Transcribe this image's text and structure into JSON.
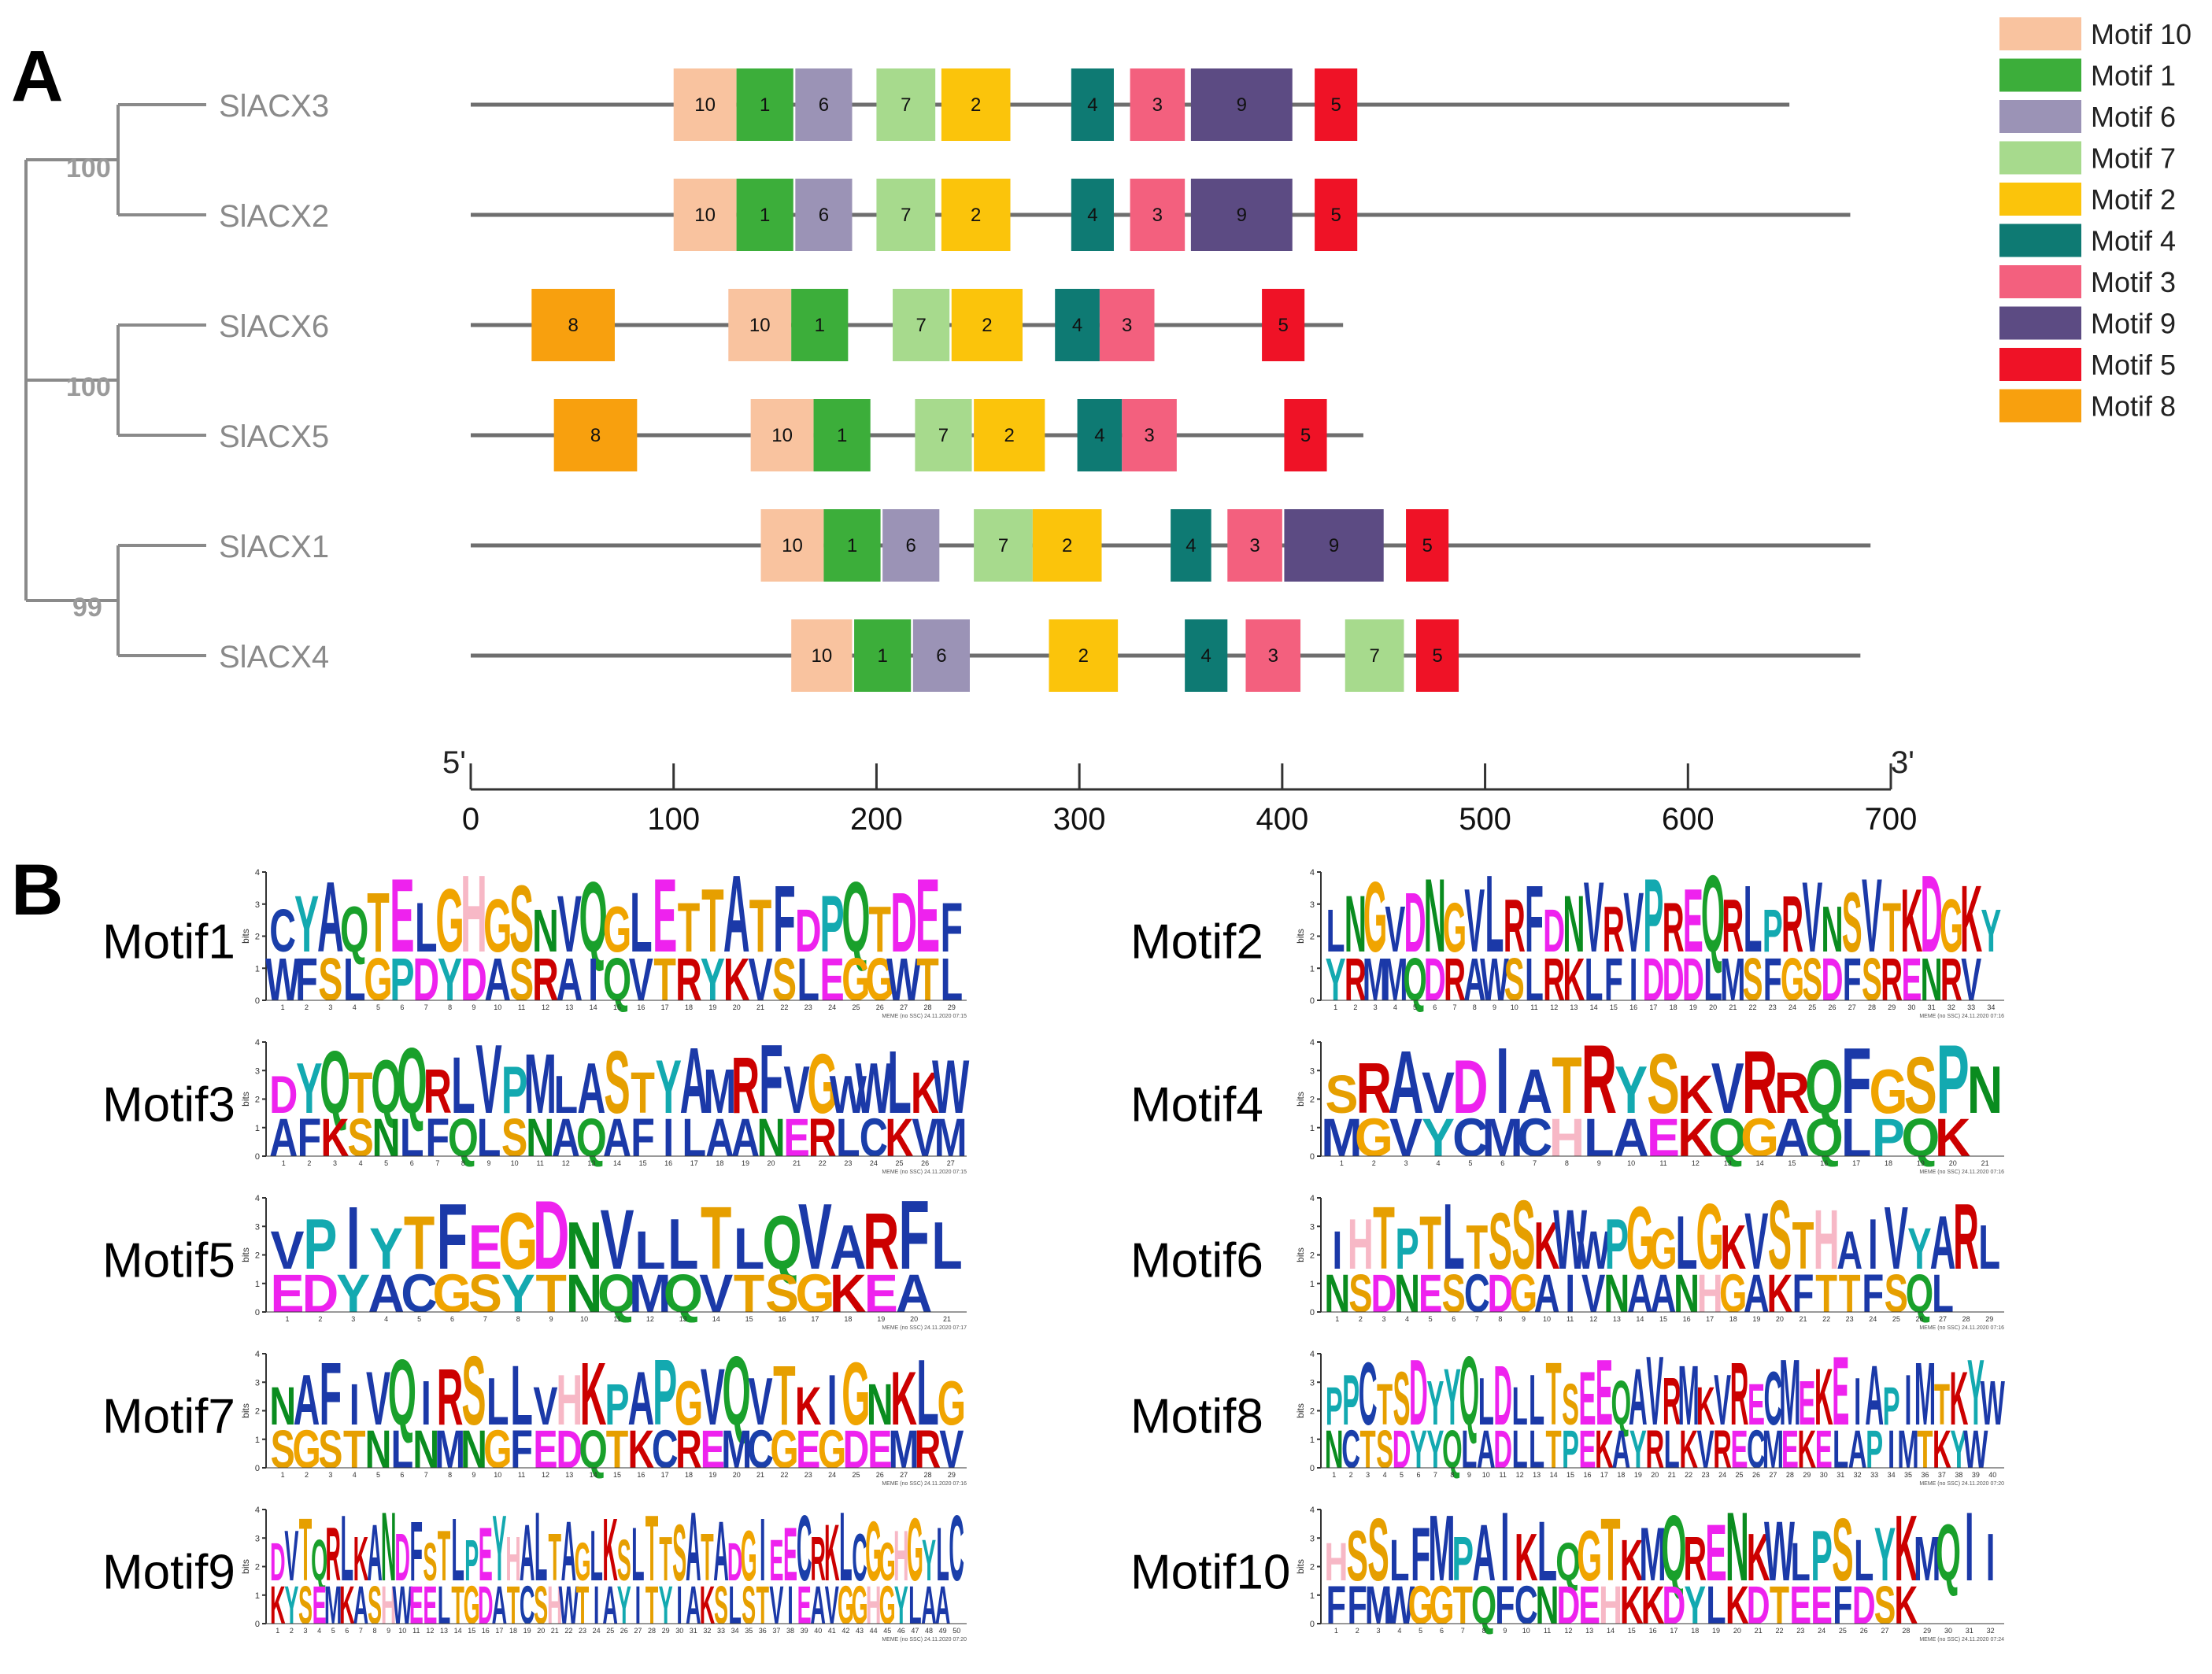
{
  "panel_a": {
    "label": "A",
    "scale_start": 0,
    "scale_end": 700,
    "scale_end_5": "5'",
    "scale_end_3": "3'",
    "ticks": [
      "0",
      "100",
      "200",
      "300",
      "400",
      "500",
      "600",
      "700"
    ],
    "tree": {
      "bootstraps": [
        "100",
        "100",
        "99"
      ]
    },
    "genes": [
      {
        "name": "SlACX3",
        "length": 650,
        "motifs": [
          {
            "id": "10",
            "start": 100,
            "end": 131
          },
          {
            "id": "1",
            "start": 131,
            "end": 159
          },
          {
            "id": "6",
            "start": 160,
            "end": 188
          },
          {
            "id": "7",
            "start": 200,
            "end": 229
          },
          {
            "id": "2",
            "start": 232,
            "end": 266
          },
          {
            "id": "4",
            "start": 296,
            "end": 317
          },
          {
            "id": "3",
            "start": 325,
            "end": 352
          },
          {
            "id": "9",
            "start": 355,
            "end": 405
          },
          {
            "id": "5",
            "start": 416,
            "end": 437
          }
        ]
      },
      {
        "name": "SlACX2",
        "length": 680,
        "motifs": [
          {
            "id": "10",
            "start": 100,
            "end": 131
          },
          {
            "id": "1",
            "start": 131,
            "end": 159
          },
          {
            "id": "6",
            "start": 160,
            "end": 188
          },
          {
            "id": "7",
            "start": 200,
            "end": 229
          },
          {
            "id": "2",
            "start": 232,
            "end": 266
          },
          {
            "id": "4",
            "start": 296,
            "end": 317
          },
          {
            "id": "3",
            "start": 325,
            "end": 352
          },
          {
            "id": "9",
            "start": 355,
            "end": 405
          },
          {
            "id": "5",
            "start": 416,
            "end": 437
          }
        ]
      },
      {
        "name": "SlACX6",
        "length": 430,
        "motifs": [
          {
            "id": "8",
            "start": 30,
            "end": 71
          },
          {
            "id": "10",
            "start": 127,
            "end": 158
          },
          {
            "id": "1",
            "start": 158,
            "end": 186
          },
          {
            "id": "7",
            "start": 208,
            "end": 236
          },
          {
            "id": "2",
            "start": 237,
            "end": 272
          },
          {
            "id": "4",
            "start": 288,
            "end": 310
          },
          {
            "id": "3",
            "start": 310,
            "end": 337
          },
          {
            "id": "5",
            "start": 390,
            "end": 411
          }
        ]
      },
      {
        "name": "SlACX5",
        "length": 440,
        "motifs": [
          {
            "id": "8",
            "start": 41,
            "end": 82
          },
          {
            "id": "10",
            "start": 138,
            "end": 169
          },
          {
            "id": "1",
            "start": 169,
            "end": 197
          },
          {
            "id": "7",
            "start": 219,
            "end": 247
          },
          {
            "id": "2",
            "start": 248,
            "end": 283
          },
          {
            "id": "4",
            "start": 299,
            "end": 321
          },
          {
            "id": "3",
            "start": 321,
            "end": 348
          },
          {
            "id": "5",
            "start": 401,
            "end": 422
          }
        ]
      },
      {
        "name": "SlACX1",
        "length": 690,
        "motifs": [
          {
            "id": "10",
            "start": 143,
            "end": 174
          },
          {
            "id": "1",
            "start": 174,
            "end": 202
          },
          {
            "id": "6",
            "start": 203,
            "end": 231
          },
          {
            "id": "7",
            "start": 248,
            "end": 277
          },
          {
            "id": "2",
            "start": 277,
            "end": 311
          },
          {
            "id": "4",
            "start": 345,
            "end": 365
          },
          {
            "id": "3",
            "start": 373,
            "end": 400
          },
          {
            "id": "9",
            "start": 401,
            "end": 450
          },
          {
            "id": "5",
            "start": 461,
            "end": 482
          }
        ]
      },
      {
        "name": "SlACX4",
        "length": 685,
        "motifs": [
          {
            "id": "10",
            "start": 158,
            "end": 188
          },
          {
            "id": "1",
            "start": 189,
            "end": 217
          },
          {
            "id": "6",
            "start": 218,
            "end": 246
          },
          {
            "id": "2",
            "start": 285,
            "end": 319
          },
          {
            "id": "4",
            "start": 352,
            "end": 373
          },
          {
            "id": "3",
            "start": 382,
            "end": 409
          },
          {
            "id": "7",
            "start": 431,
            "end": 460
          },
          {
            "id": "5",
            "start": 466,
            "end": 487
          }
        ]
      }
    ]
  },
  "legend": [
    {
      "id": "10",
      "label": "Motif 10",
      "color": "#F9C39F"
    },
    {
      "id": "1",
      "label": "Motif 1",
      "color": "#3CAE3A"
    },
    {
      "id": "6",
      "label": "Motif 6",
      "color": "#9B93B6"
    },
    {
      "id": "7",
      "label": "Motif 7",
      "color": "#A7DA8D"
    },
    {
      "id": "2",
      "label": "Motif 2",
      "color": "#FBC40B"
    },
    {
      "id": "4",
      "label": "Motif 4",
      "color": "#0E7A73"
    },
    {
      "id": "3",
      "label": "Motif 3",
      "color": "#F3607E"
    },
    {
      "id": "9",
      "label": "Motif 9",
      "color": "#5C4B83"
    },
    {
      "id": "5",
      "label": "Motif 5",
      "color": "#EF1226"
    },
    {
      "id": "8",
      "label": "Motif 8",
      "color": "#F8A00E"
    }
  ],
  "panel_b": {
    "label": "B",
    "axis_label": "bits",
    "axis_ticks": [
      "0",
      "1",
      "2",
      "3",
      "4"
    ],
    "logos": [
      {
        "name": "Motif1",
        "top": "CYAQTELGHGSNVQGLETTATFDPQTDEF",
        "bottom": "WFSLGPDYDASRAIQVTRYKVSLEGGWTL",
        "footer": "MEME (no SSC) 24.11.2020 07:15"
      },
      {
        "name": "Motif2",
        "top": "LNGVDNGVLRFDNVRVPREQRLPRVNSVTKDGKY",
        "bottom": "YRMMQDRAWSLRKLFIDDDLMSFGSDFSRENRV",
        "footer": "MEME (no SSC) 24.11.2020 07:16"
      },
      {
        "name": "Motif3",
        "top": "DYQTQQRLVPMLASTYAMRFVGWWLKW",
        "bottom": "AFKSNLFQLSNAQAFILAANERLCKVM",
        "footer": "MEME (no SSC) 24.11.2020 07:15"
      },
      {
        "name": "Motif4",
        "top": "SRAVDIATRYSKVRRQFGSPN",
        "bottom": "MGVYCMCHLAEKQGAQLPQK",
        "footer": "MEME (no SSC) 24.11.2020 07:16"
      },
      {
        "name": "Motif5",
        "top": "VPIYTFEGDNVLLTLQVARFL",
        "bottom": "EDYACGSYTNQMQVTSGKEA",
        "footer": "MEME (no SSC) 24.11.2020 07:17"
      },
      {
        "name": "Motif6",
        "top": "IHTPTLTSSKWWPGGLGKVSTHAIVYARL",
        "bottom": "NSDNESCDGAIVNAANHGAKFTTFSQL",
        "footer": "MEME (no SSC) 24.11.2020 07:16"
      },
      {
        "name": "Motif7",
        "top": "NAFIVQIRSLLVHKPAPGVQVTKIGNKLG",
        "bottom": "SGSTNLNMNGFEDQTKCREMCGEGDEMRV",
        "footer": "MEME (no SSC) 24.11.2020 07:16"
      },
      {
        "name": "Motif8",
        "top": "PPCTSDYYQLDLLTSEEQAVRMKVRECMEKEIAPIMTKYW",
        "bottom": "NCTSDYYQLADLLTPEKAYRLKVRECMEKELAPIMTKYW",
        "footer": "MEME (no SSC) 24.11.2020 07:20"
      },
      {
        "name": "Motif9",
        "top": "DVTQRLKANDFSTLPEYHALTAGLKSLTTSATADGIEECRKLCGGHGYLC",
        "bottom": "KYSEMKASHWEELTGDATCSHWTIAYITYIAKSLSTVIEAVGGHGYLAA",
        "footer": "MEME (no SSC) 24.11.2020 07:20"
      },
      {
        "name": "Motif10",
        "top": "HSSLFMPAIKLQGTKMQRENKWLPSLYKMQII",
        "bottom": "FFMWGGTQFCNDEHKKDYLKDTEEFDSK",
        "footer": "MEME (no SSC) 24.11.2020 07:24"
      }
    ]
  }
}
